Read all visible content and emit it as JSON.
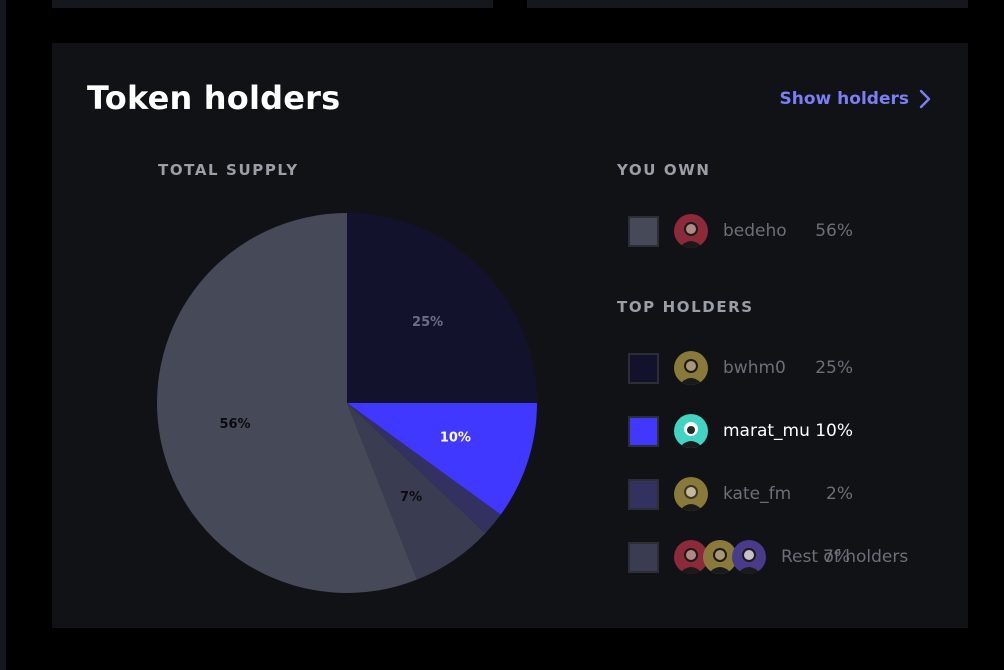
{
  "colors": {
    "accent": "#7b7ef6",
    "slice_you": "#464958",
    "slice_bwhm0": "#13122c",
    "slice_marat": "#4038ff",
    "slice_kate": "#333160",
    "slice_rest": "#3a3c52"
  },
  "header": {
    "title": "Token holders",
    "show_holders": "Show holders",
    "show_holders_icon": "chevron-right-icon"
  },
  "total_supply_label": "TOTAL SUPPLY",
  "you_own_label": "YOU OWN",
  "top_holders_label": "TOP HOLDERS",
  "you_own": {
    "name": "bedeho",
    "pct": "56%"
  },
  "top_holders": [
    {
      "name": "bwhm0",
      "pct": "25%"
    },
    {
      "name": "marat_mu",
      "pct": "10%"
    },
    {
      "name": "kate_fm",
      "pct": "2%"
    }
  ],
  "rest": {
    "label": "Rest of holders",
    "pct": "7%"
  },
  "chart_data": {
    "type": "pie",
    "slices": [
      {
        "label": "bwhm0",
        "value": 25,
        "display": "25%",
        "color": "#13122c",
        "text_color": "#6b6e85"
      },
      {
        "label": "marat_mu",
        "value": 10,
        "display": "10%",
        "color": "#4038ff",
        "text_color": "#ffffff"
      },
      {
        "label": "kate_fm",
        "value": 2,
        "display": "",
        "color": "#333160",
        "text_color": "#ffffff"
      },
      {
        "label": "Rest of holders",
        "value": 7,
        "display": "7%",
        "color": "#3a3c52",
        "text_color": "#0b0b0e"
      },
      {
        "label": "bedeho",
        "value": 56,
        "display": "56%",
        "color": "#464958",
        "text_color": "#0b0b0e"
      }
    ]
  }
}
